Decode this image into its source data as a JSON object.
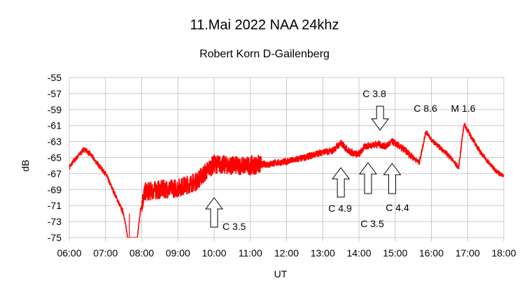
{
  "chart_data": {
    "type": "line",
    "title": "11.Mai 2022 NAA 24khz",
    "subtitle": "Robert Korn D-Gailenberg",
    "xlabel": "UT",
    "ylabel": "dB",
    "xlim": [
      "06:00",
      "18:00"
    ],
    "ylim": [
      -75,
      -55
    ],
    "x_ticks": [
      "06:00",
      "07:00",
      "08:00",
      "09:00",
      "10:00",
      "11:00",
      "12:00",
      "13:00",
      "14:00",
      "15:00",
      "16:00",
      "17:00",
      "18:00"
    ],
    "y_ticks": [
      "-55",
      "-57",
      "-59",
      "-61",
      "-63",
      "-65",
      "-67",
      "-69",
      "-71",
      "-73",
      "-75"
    ],
    "grid": true,
    "line_color": "#ff0000",
    "series": [
      {
        "x": [
          "06:00",
          "06:10",
          "06:25",
          "06:35",
          "06:45",
          "07:00",
          "07:15",
          "07:30",
          "07:38",
          "07:45",
          "07:52",
          "07:58",
          "08:05",
          "08:30",
          "09:00",
          "09:30",
          "09:50",
          "10:00",
          "10:30",
          "11:00",
          "11:30",
          "12:00",
          "12:30",
          "13:00",
          "13:15",
          "13:30",
          "13:45",
          "14:00",
          "14:10",
          "14:30",
          "14:45",
          "14:55",
          "15:15",
          "15:30",
          "15:40",
          "15:51",
          "16:00",
          "16:30",
          "16:45",
          "16:54",
          "17:00",
          "17:15",
          "17:30",
          "17:45",
          "18:00"
        ],
        "y": [
          -66.2,
          -65.2,
          -63.9,
          -64.6,
          -65.6,
          -67.0,
          -69.5,
          -72.0,
          -75.5,
          -76,
          -75.5,
          -71.5,
          -69.3,
          -69.0,
          -68.8,
          -68.0,
          -66.5,
          -65.8,
          -66.0,
          -66.0,
          -65.8,
          -65.5,
          -65.0,
          -64.3,
          -64.2,
          -63.2,
          -64.3,
          -64.6,
          -63.6,
          -63.3,
          -63.6,
          -63.0,
          -64.0,
          -65.0,
          -65.6,
          -61.7,
          -62.8,
          -64.8,
          -66.3,
          -60.8,
          -61.6,
          -63.6,
          -65.2,
          -66.5,
          -67.4
        ]
      }
    ],
    "annotations": [
      {
        "text": "C 3.5",
        "time": "10:00",
        "arrow": "up"
      },
      {
        "text": "C 4.9",
        "time": "13:30",
        "arrow": "up"
      },
      {
        "text": "C 3.5",
        "time": "14:15",
        "arrow": "up"
      },
      {
        "text": "C 4.4",
        "time": "14:55",
        "arrow": "up"
      },
      {
        "text": "C 3.8",
        "time": "14:35",
        "arrow": "down"
      },
      {
        "text": "C 8.6",
        "time": "15:51",
        "arrow": "none"
      },
      {
        "text": "M 1.6",
        "time": "16:54",
        "arrow": "none"
      }
    ]
  }
}
